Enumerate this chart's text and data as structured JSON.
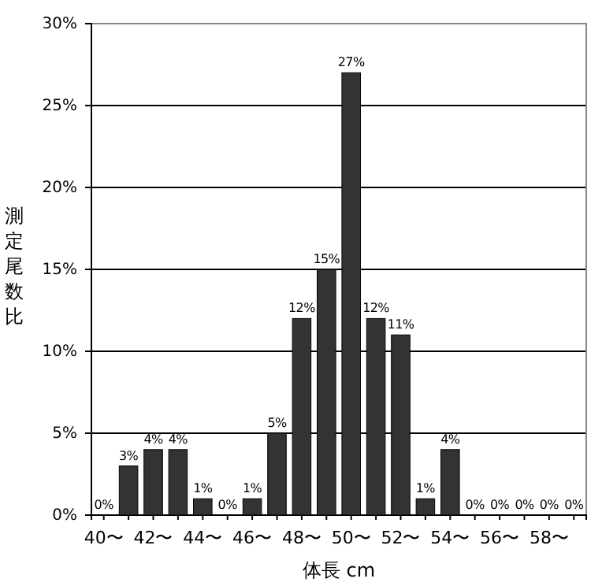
{
  "chart_data": {
    "type": "bar",
    "xlabel": "体長 cm",
    "ylabel": "測定尾数比",
    "categories": [
      "40〜",
      null,
      "42〜",
      null,
      "44〜",
      null,
      "46〜",
      null,
      "48〜",
      null,
      "50〜",
      null,
      "52〜",
      null,
      "54〜",
      null,
      "56〜",
      null,
      "58〜",
      null
    ],
    "values": [
      0,
      3,
      4,
      4,
      1,
      0,
      1,
      5,
      12,
      15,
      27,
      12,
      11,
      1,
      4,
      0,
      0,
      0,
      0,
      0
    ],
    "value_labels": [
      "0%",
      "3%",
      "4%",
      "4%",
      "1%",
      "0%",
      "1%",
      "5%",
      "12%",
      "15%",
      "27%",
      "12%",
      "11%",
      "1%",
      "4%",
      "0%",
      "0%",
      "0%",
      "0%",
      "0%"
    ],
    "color": "#333333",
    "ylim": [
      0,
      30
    ],
    "yticks": [
      {
        "value": 0,
        "label": "0%"
      },
      {
        "value": 5,
        "label": "5%"
      },
      {
        "value": 10,
        "label": "10%"
      },
      {
        "value": 15,
        "label": "15%"
      },
      {
        "value": 20,
        "label": "20%"
      },
      {
        "value": 25,
        "label": "25%"
      },
      {
        "value": 30,
        "label": "30%"
      }
    ],
    "grid": "y"
  }
}
